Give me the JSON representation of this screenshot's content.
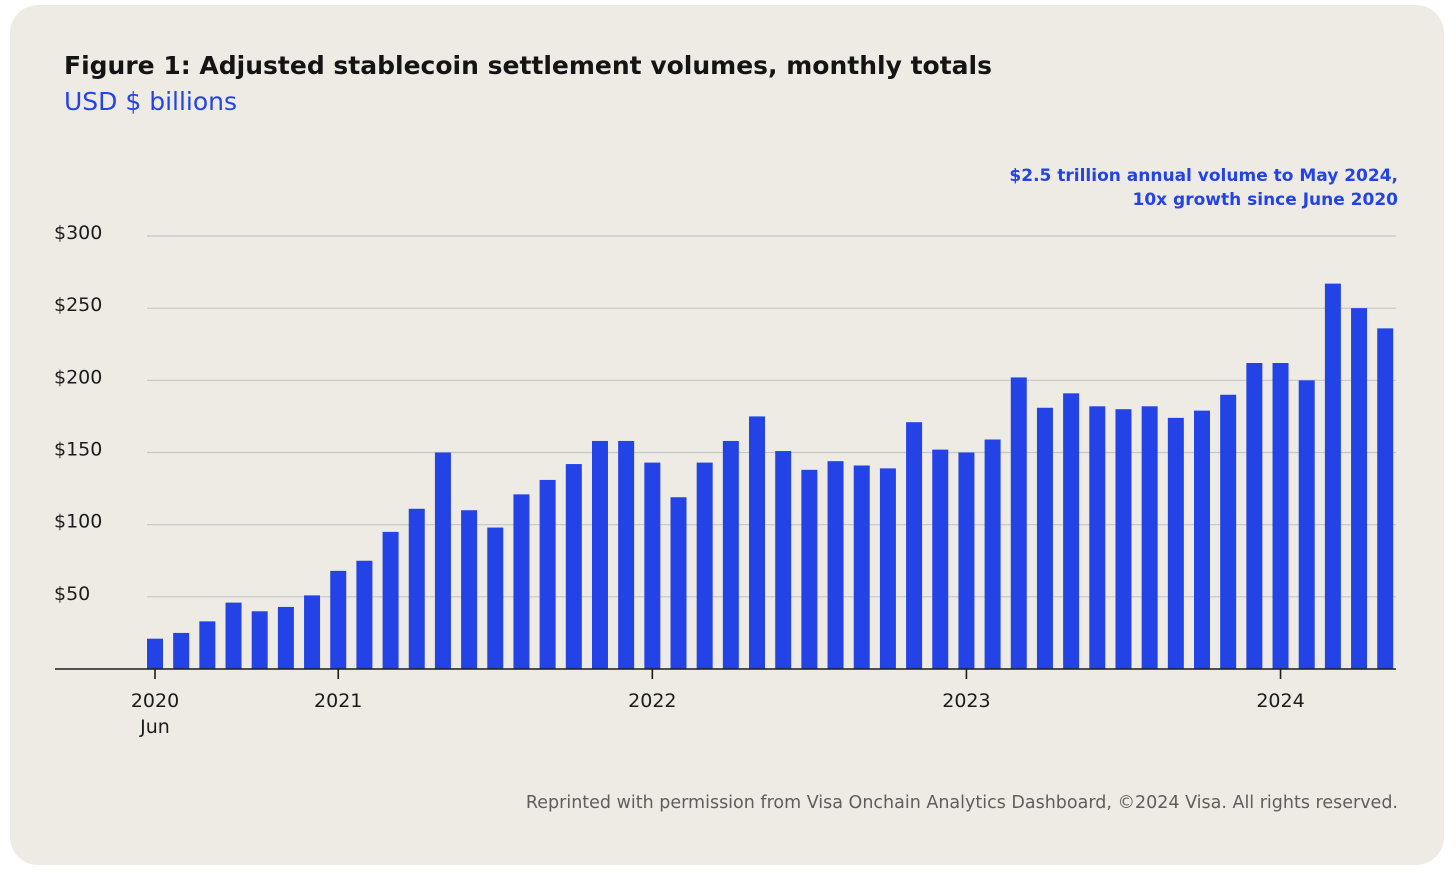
{
  "chart_data": {
    "type": "bar",
    "title": "Figure 1: Adjusted stablecoin settlement volumes, monthly totals",
    "subtitle": "USD $ billions",
    "annotation": [
      "$2.5 trillion annual volume to May 2024,",
      "10x growth since June 2020"
    ],
    "footer": "Reprinted with permission from Visa Onchain Analytics Dashboard, ©2024 Visa.  All rights reserved.",
    "ylim": [
      0,
      300
    ],
    "yticks": [
      {
        "value": 50,
        "label": "$50"
      },
      {
        "value": 100,
        "label": "$100"
      },
      {
        "value": 150,
        "label": "$150"
      },
      {
        "value": 200,
        "label": "$200"
      },
      {
        "value": 250,
        "label": "$250"
      },
      {
        "value": 300,
        "label": "$300"
      }
    ],
    "grid": true,
    "bar_color": "#2343e6",
    "xticks": [
      {
        "index": 0,
        "label": "2020",
        "sublabel": "Jun"
      },
      {
        "index": 7,
        "label": "2021"
      },
      {
        "index": 19,
        "label": "2022"
      },
      {
        "index": 31,
        "label": "2023"
      },
      {
        "index": 43,
        "label": "2024"
      }
    ],
    "categories": [
      "2020-06",
      "2020-07",
      "2020-08",
      "2020-09",
      "2020-10",
      "2020-11",
      "2020-12",
      "2021-01",
      "2021-02",
      "2021-03",
      "2021-04",
      "2021-05",
      "2021-06",
      "2021-07",
      "2021-08",
      "2021-09",
      "2021-10",
      "2021-11",
      "2021-12",
      "2022-01",
      "2022-02",
      "2022-03",
      "2022-04",
      "2022-05",
      "2022-06",
      "2022-07",
      "2022-08",
      "2022-09",
      "2022-10",
      "2022-11",
      "2022-12",
      "2023-01",
      "2023-02",
      "2023-03",
      "2023-04",
      "2023-05",
      "2023-06",
      "2023-07",
      "2023-08",
      "2023-09",
      "2023-10",
      "2023-11",
      "2023-12",
      "2024-01",
      "2024-02",
      "2024-03",
      "2024-04",
      "2024-05"
    ],
    "values": [
      21,
      25,
      33,
      46,
      40,
      43,
      51,
      68,
      75,
      95,
      111,
      150,
      110,
      98,
      121,
      131,
      142,
      158,
      158,
      143,
      119,
      143,
      158,
      175,
      151,
      138,
      144,
      141,
      139,
      171,
      152,
      150,
      159,
      202,
      181,
      191,
      182,
      180,
      182,
      174,
      179,
      190,
      212,
      212,
      200,
      267,
      250,
      236
    ]
  }
}
